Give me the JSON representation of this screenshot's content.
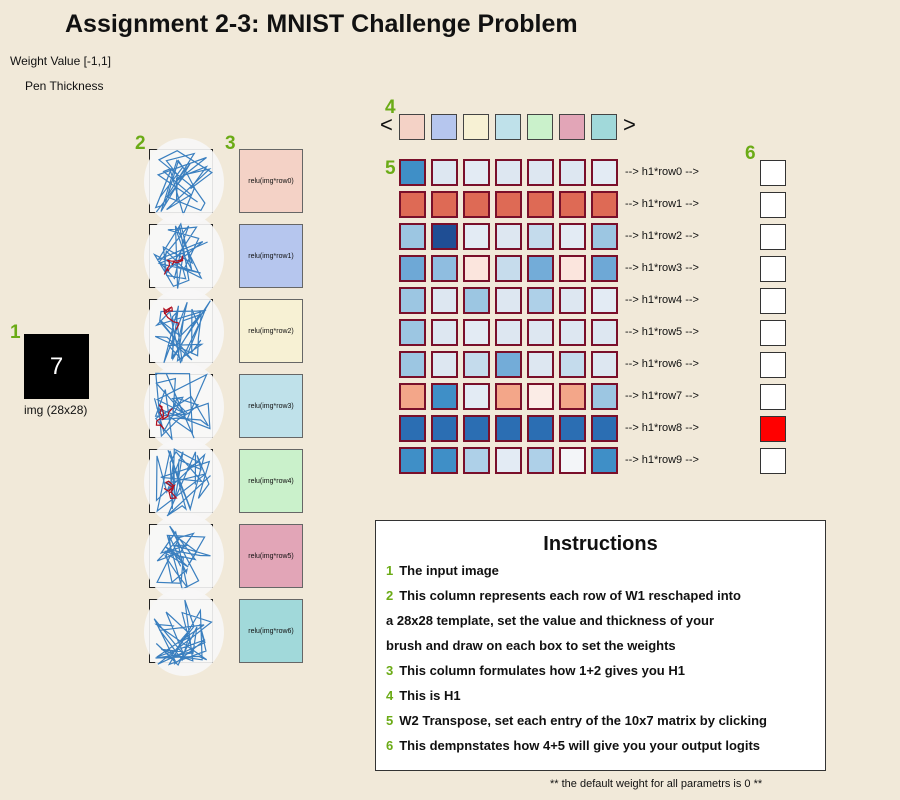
{
  "title": "Assignment 2-3: MNIST Challenge Problem",
  "controls": {
    "weight_value_label": "Weight Value [-1,1]",
    "pen_thickness_label": "Pen Thickness"
  },
  "badges": [
    "1",
    "2",
    "3",
    "4",
    "5",
    "6"
  ],
  "input": {
    "digit": "7",
    "caption": "img (28x28)"
  },
  "w1_rows": [
    {
      "label": "relu(img*row0)",
      "color": "#f4d2c6"
    },
    {
      "label": "relu(img*row1)",
      "color": "#b6c6ee"
    },
    {
      "label": "relu(img*row2)",
      "color": "#f7f1d4"
    },
    {
      "label": "relu(img*row3)",
      "color": "#bfe1ea"
    },
    {
      "label": "relu(img*row4)",
      "color": "#caf1cb"
    },
    {
      "label": "relu(img*row5)",
      "color": "#e2a5b7"
    },
    {
      "label": "relu(img*row6)",
      "color": "#a1d9da"
    }
  ],
  "h1_strip": {
    "left_arrow": "<",
    "right_arrow": ">",
    "colors": [
      "#f4d2c6",
      "#b6c6ee",
      "#f7f1d4",
      "#bfe1ea",
      "#caf1cb",
      "#e2a5b7",
      "#a1d9da"
    ]
  },
  "w2": {
    "row_labels": [
      "--> h1*row0 -->",
      "--> h1*row1 -->",
      "--> h1*row2 -->",
      "--> h1*row3 -->",
      "--> h1*row4 -->",
      "--> h1*row5 -->",
      "--> h1*row6 -->",
      "--> h1*row7 -->",
      "--> h1*row8 -->",
      "--> h1*row9 -->"
    ],
    "cell_colors": [
      [
        "#3f8fc7",
        "#dde7f1",
        "#e3ebf4",
        "#dde7f1",
        "#dde7f1",
        "#dde7f1",
        "#e3ebf4"
      ],
      [
        "#de6a55",
        "#de6a55",
        "#de6a55",
        "#de6a55",
        "#de6a55",
        "#de6a55",
        "#de6a55"
      ],
      [
        "#9cc6e2",
        "#1f4e94",
        "#e3ebf4",
        "#dde7f1",
        "#c4dbec",
        "#e3ebf4",
        "#9cc6e2"
      ],
      [
        "#6ea8d6",
        "#8fbde0",
        "#fbe5dd",
        "#c6dcec",
        "#73acd8",
        "#fbe5dd",
        "#6ea8d6"
      ],
      [
        "#9cc6e2",
        "#dde7f1",
        "#9cc6e2",
        "#dde7f1",
        "#aed0e8",
        "#dde7f1",
        "#e3ebf4"
      ],
      [
        "#9cc6e2",
        "#dde7f1",
        "#e3ebf4",
        "#dde7f1",
        "#dde7f1",
        "#dde7f1",
        "#dde7f1"
      ],
      [
        "#9cc6e2",
        "#dde7f1",
        "#c4dbec",
        "#73acd8",
        "#dde7f1",
        "#c4dbec",
        "#dde7f1"
      ],
      [
        "#f3a689",
        "#3f8fc7",
        "#e3ebf4",
        "#f3a689",
        "#fbece6",
        "#f3a689",
        "#9cc6e2"
      ],
      [
        "#2b6eb3",
        "#2b6eb3",
        "#2b6eb3",
        "#2b6eb3",
        "#2b6eb3",
        "#2b6eb3",
        "#2b6eb3"
      ],
      [
        "#3f8fc7",
        "#3f8fc7",
        "#aed0e8",
        "#e3ebf4",
        "#aed0e8",
        "#f3f5f8",
        "#3f8fc7"
      ]
    ]
  },
  "logits": {
    "colors": [
      "#ffffff",
      "#ffffff",
      "#ffffff",
      "#ffffff",
      "#ffffff",
      "#ffffff",
      "#ffffff",
      "#ffffff",
      "#ff0000",
      "#ffffff"
    ]
  },
  "instructions": {
    "heading": "Instructions",
    "items": [
      {
        "num": "1",
        "text": "The input image"
      },
      {
        "num": "2",
        "text": "This column represents each row of W1 reschaped into"
      },
      {
        "num": "",
        "text": "a 28x28 template, set the value and thickness of your"
      },
      {
        "num": "",
        "text": "brush and draw on each box to set the weights"
      },
      {
        "num": "3",
        "text": "This column formulates how 1+2 gives you H1"
      },
      {
        "num": "4",
        "text": "This is H1"
      },
      {
        "num": "5",
        "text": "W2 Transpose, set each entry of the 10x7 matrix by clicking"
      },
      {
        "num": "6",
        "text": "This dempnstates how 4+5 will give you your output logits"
      }
    ]
  },
  "footer": "** the default weight for all parametrs is 0 **",
  "colors": {
    "badge": "#6bab16",
    "stroke_blue": "#3a7fbf",
    "stroke_red": "#b01020",
    "matrix_border": "#7a0f2a"
  }
}
